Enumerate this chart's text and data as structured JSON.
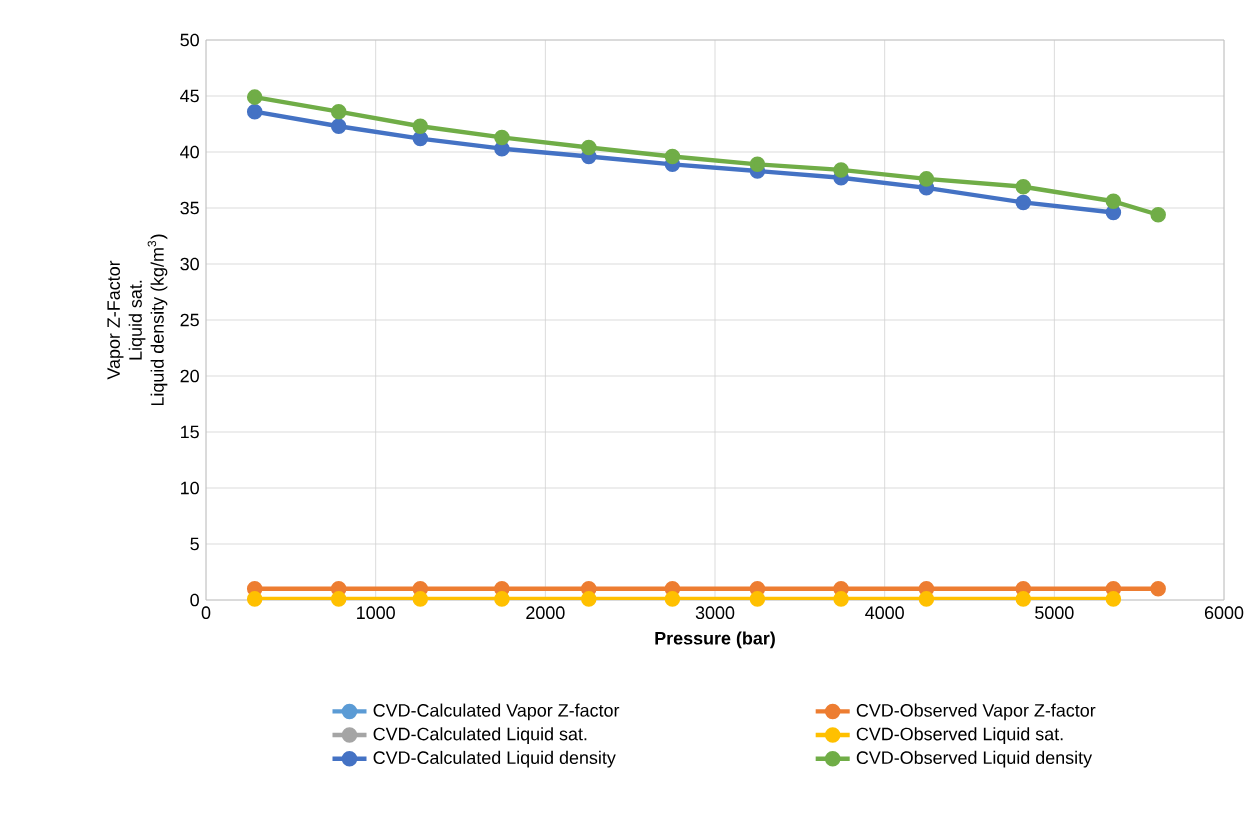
{
  "chart_data": {
    "type": "line",
    "xlabel": "Pressure (bar)",
    "ylabel": "Vapor Z-Factor\nLiquid sat.\nLiquid density (kg/m$^{3}$)",
    "xlim": [
      0,
      6000
    ],
    "xticks": [
      0,
      1000,
      2000,
      3000,
      4000,
      5000,
      6000
    ],
    "ylim": [
      0,
      50
    ],
    "yticks": [
      0,
      5,
      10,
      15,
      20,
      25,
      30,
      35,
      40,
      45,
      50
    ],
    "grid": true,
    "legend": "bottom",
    "marker": "circle",
    "line_style": "solid",
    "x": [
      287,
      782,
      1263,
      1744,
      2256,
      2749,
      3250,
      3743,
      4246,
      4817,
      5348,
      5612
    ],
    "series": [
      {
        "name": "CVD-Calculated Vapor Z-factor",
        "color": "#5b9bd5",
        "values": [
          null,
          null,
          null,
          null,
          null,
          null,
          null,
          null,
          null,
          null,
          null,
          null
        ]
      },
      {
        "name": "CVD-Observed Vapor Z-factor",
        "color": "#ed7d31",
        "values": [
          1.0,
          1.0,
          1.0,
          1.0,
          1.0,
          1.0,
          1.0,
          1.0,
          1.0,
          1.0,
          1.0,
          1.0
        ]
      },
      {
        "name": "CVD-Calculated Liquid sat.",
        "color": "#a5a5a5",
        "values": [
          null,
          null,
          null,
          null,
          null,
          null,
          null,
          null,
          null,
          null,
          null,
          null
        ]
      },
      {
        "name": "CVD-Observed Liquid sat.",
        "color": "#ffc000",
        "values": [
          0.1,
          0.1,
          0.1,
          0.1,
          0.1,
          0.1,
          0.1,
          0.1,
          0.1,
          0.1,
          0.1,
          null
        ]
      },
      {
        "name": "CVD-Calculated Liquid density",
        "color": "#4472c4",
        "values": [
          43.6,
          42.3,
          41.2,
          40.3,
          39.6,
          38.9,
          38.3,
          37.7,
          36.8,
          35.5,
          34.6,
          null
        ]
      },
      {
        "name": "CVD-Observed Liquid density",
        "color": "#70ad47",
        "values": [
          44.9,
          43.6,
          42.3,
          41.3,
          40.4,
          39.6,
          38.9,
          38.4,
          37.6,
          36.9,
          35.6,
          34.4
        ]
      }
    ]
  }
}
